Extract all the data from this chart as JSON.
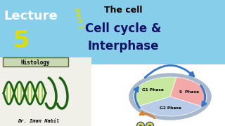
{
  "bg_color": "#ffffff",
  "left_top_color": "#87CEEB",
  "right_bg_color": "#ffffff",
  "banner_color": "#87CEEB",
  "lecture_text": "Lecture",
  "lecture_num": "5",
  "part_text": "part 1",
  "title_top": "The cell",
  "title_main1": "Cell cycle &",
  "title_main2": "Interphase",
  "histology_text": "Histology",
  "author_text": "Dr. Iman Nabil",
  "g1_label": "G1 Phase",
  "s_label": "S  Phase",
  "g2_label": "G2 Phase",
  "g1_color": "#c8e8a0",
  "s_color": "#f4a8a8",
  "g2_color": "#b8cce8",
  "ellipse_border": "#8899bb",
  "arrow_color": "#3377cc",
  "orange_arrow": "#e08020",
  "dna_green": "#1a6010",
  "dna_stripe": "#99cc22",
  "hist_box_color": "#c8d8b0",
  "hist_border": "#556633",
  "yellow_text": "#dddd00",
  "cell_bg_top": "#b8d8f0",
  "cell_ellipse_outer": "#a8b8cc"
}
